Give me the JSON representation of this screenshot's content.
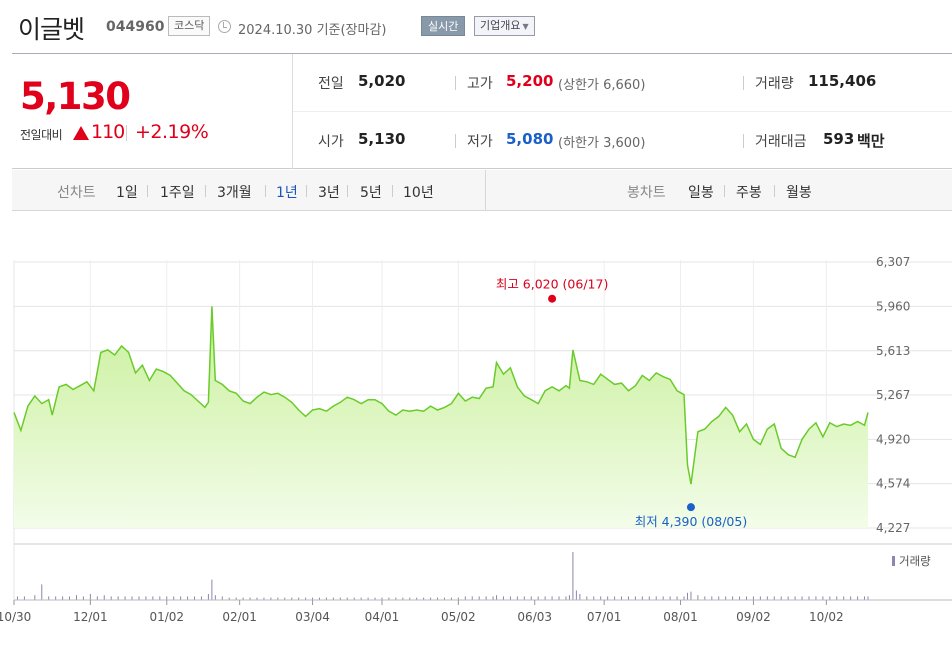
{
  "header": {
    "stock_name": "이글벳",
    "stock_code": "044960",
    "market": "코스닥",
    "date_text": "2024.10.30  기준(장마감)",
    "realtime_label": "실시간",
    "company_label": "기업개요"
  },
  "summary": {
    "price": "5,130",
    "change_label": "전일대비",
    "change_value": "110",
    "change_pct": "+2.19%",
    "prev_close_label": "전일",
    "prev_close": "5,020",
    "high_label": "고가",
    "high": "5,200",
    "upper_limit_label": "(상한가",
    "upper_limit": "6,660",
    "upper_limit_close": ")",
    "volume_label": "거래량",
    "volume": "115,406",
    "open_label": "시가",
    "open": "5,130",
    "low_label": "저가",
    "low": "5,080",
    "lower_limit_label": "(하한가",
    "lower_limit": "3,600",
    "lower_limit_close": ")",
    "amount_label": "거래대금",
    "amount": "593",
    "amount_unit": "백만",
    "up_color": "#e0001b",
    "down_color": "#1a60c8"
  },
  "toolbar": {
    "line_chart_label": "선차트",
    "periods": [
      "1일",
      "1주일",
      "3개월",
      "1년",
      "3년",
      "5년",
      "10년"
    ],
    "active_period": "1년",
    "candle_chart_label": "봉차트",
    "candle_periods": [
      "일봉",
      "주봉",
      "월봉"
    ]
  },
  "chart_data": {
    "type": "area",
    "y_ticks": [
      "6,307",
      "5,960",
      "5,613",
      "5,267",
      "4,920",
      "4,574",
      "4,227"
    ],
    "ylim": [
      4227,
      6307
    ],
    "x_tick_labels": [
      "10/30",
      "12/01",
      "01/02",
      "02/01",
      "03/04",
      "04/01",
      "05/02",
      "06/03",
      "07/01",
      "08/01",
      "09/02",
      "10/02"
    ],
    "x_tick_positions": [
      0,
      22,
      44,
      65,
      86,
      106,
      128,
      150,
      170,
      192,
      213,
      234
    ],
    "n_days": 247,
    "price_series": [
      [
        0,
        5130
      ],
      [
        2,
        4990
      ],
      [
        4,
        5180
      ],
      [
        6,
        5260
      ],
      [
        8,
        5200
      ],
      [
        10,
        5230
      ],
      [
        11,
        5110
      ],
      [
        13,
        5330
      ],
      [
        15,
        5350
      ],
      [
        17,
        5310
      ],
      [
        19,
        5340
      ],
      [
        21,
        5370
      ],
      [
        23,
        5300
      ],
      [
        25,
        5600
      ],
      [
        27,
        5620
      ],
      [
        29,
        5580
      ],
      [
        31,
        5650
      ],
      [
        33,
        5600
      ],
      [
        35,
        5440
      ],
      [
        37,
        5500
      ],
      [
        39,
        5380
      ],
      [
        41,
        5470
      ],
      [
        43,
        5450
      ],
      [
        45,
        5420
      ],
      [
        47,
        5360
      ],
      [
        49,
        5300
      ],
      [
        51,
        5270
      ],
      [
        53,
        5220
      ],
      [
        55,
        5170
      ],
      [
        56,
        5210
      ],
      [
        57,
        5960
      ],
      [
        58,
        5380
      ],
      [
        60,
        5350
      ],
      [
        62,
        5300
      ],
      [
        64,
        5280
      ],
      [
        66,
        5220
      ],
      [
        68,
        5200
      ],
      [
        70,
        5250
      ],
      [
        72,
        5290
      ],
      [
        74,
        5270
      ],
      [
        76,
        5280
      ],
      [
        78,
        5250
      ],
      [
        80,
        5210
      ],
      [
        82,
        5150
      ],
      [
        84,
        5100
      ],
      [
        86,
        5150
      ],
      [
        88,
        5160
      ],
      [
        90,
        5140
      ],
      [
        92,
        5180
      ],
      [
        94,
        5210
      ],
      [
        96,
        5250
      ],
      [
        98,
        5230
      ],
      [
        100,
        5200
      ],
      [
        102,
        5230
      ],
      [
        104,
        5230
      ],
      [
        106,
        5200
      ],
      [
        108,
        5140
      ],
      [
        110,
        5110
      ],
      [
        112,
        5150
      ],
      [
        114,
        5140
      ],
      [
        116,
        5150
      ],
      [
        118,
        5140
      ],
      [
        120,
        5180
      ],
      [
        122,
        5150
      ],
      [
        124,
        5170
      ],
      [
        126,
        5200
      ],
      [
        128,
        5280
      ],
      [
        130,
        5220
      ],
      [
        132,
        5250
      ],
      [
        134,
        5240
      ],
      [
        136,
        5320
      ],
      [
        138,
        5330
      ],
      [
        139,
        5520
      ],
      [
        141,
        5430
      ],
      [
        143,
        5480
      ],
      [
        145,
        5330
      ],
      [
        147,
        5260
      ],
      [
        149,
        5230
      ],
      [
        151,
        5200
      ],
      [
        153,
        5300
      ],
      [
        155,
        5330
      ],
      [
        157,
        5300
      ],
      [
        159,
        5340
      ],
      [
        160,
        5320
      ],
      [
        161,
        5620
      ],
      [
        163,
        5380
      ],
      [
        165,
        5370
      ],
      [
        167,
        5350
      ],
      [
        169,
        5430
      ],
      [
        171,
        5390
      ],
      [
        173,
        5350
      ],
      [
        175,
        5360
      ],
      [
        177,
        5300
      ],
      [
        179,
        5340
      ],
      [
        181,
        5420
      ],
      [
        183,
        5380
      ],
      [
        185,
        5440
      ],
      [
        187,
        5410
      ],
      [
        189,
        5390
      ],
      [
        191,
        5300
      ],
      [
        193,
        5270
      ],
      [
        194,
        4720
      ],
      [
        195,
        4570
      ],
      [
        197,
        4980
      ],
      [
        199,
        5000
      ],
      [
        201,
        5060
      ],
      [
        203,
        5100
      ],
      [
        205,
        5170
      ],
      [
        207,
        5110
      ],
      [
        209,
        4980
      ],
      [
        211,
        5040
      ],
      [
        213,
        4920
      ],
      [
        215,
        4880
      ],
      [
        217,
        5000
      ],
      [
        219,
        5040
      ],
      [
        221,
        4850
      ],
      [
        223,
        4800
      ],
      [
        225,
        4780
      ],
      [
        227,
        4920
      ],
      [
        229,
        5000
      ],
      [
        231,
        5050
      ],
      [
        233,
        4940
      ],
      [
        235,
        5050
      ],
      [
        237,
        5020
      ],
      [
        239,
        5040
      ],
      [
        241,
        5030
      ],
      [
        243,
        5060
      ],
      [
        245,
        5030
      ],
      [
        246,
        5130
      ]
    ],
    "volume_series": [
      [
        1,
        3
      ],
      [
        3,
        3
      ],
      [
        6,
        4
      ],
      [
        8,
        13
      ],
      [
        10,
        3
      ],
      [
        12,
        3
      ],
      [
        14,
        3
      ],
      [
        16,
        3
      ],
      [
        18,
        4
      ],
      [
        20,
        3
      ],
      [
        22,
        5
      ],
      [
        24,
        3
      ],
      [
        26,
        4
      ],
      [
        28,
        3
      ],
      [
        30,
        3
      ],
      [
        32,
        3
      ],
      [
        34,
        3
      ],
      [
        36,
        3
      ],
      [
        38,
        3
      ],
      [
        40,
        3
      ],
      [
        42,
        3
      ],
      [
        44,
        3
      ],
      [
        46,
        3
      ],
      [
        48,
        3
      ],
      [
        50,
        3
      ],
      [
        52,
        3
      ],
      [
        54,
        3
      ],
      [
        56,
        5
      ],
      [
        57,
        17
      ],
      [
        58,
        4
      ],
      [
        60,
        3
      ],
      [
        62,
        2
      ],
      [
        64,
        2
      ],
      [
        66,
        2
      ],
      [
        68,
        2
      ],
      [
        70,
        2
      ],
      [
        72,
        2
      ],
      [
        74,
        2
      ],
      [
        76,
        2
      ],
      [
        78,
        2
      ],
      [
        80,
        2
      ],
      [
        82,
        2
      ],
      [
        84,
        2
      ],
      [
        86,
        2
      ],
      [
        88,
        2
      ],
      [
        90,
        2
      ],
      [
        92,
        2
      ],
      [
        94,
        2
      ],
      [
        96,
        2
      ],
      [
        98,
        2
      ],
      [
        100,
        2
      ],
      [
        102,
        2
      ],
      [
        104,
        2
      ],
      [
        106,
        2
      ],
      [
        108,
        2
      ],
      [
        110,
        2
      ],
      [
        112,
        2
      ],
      [
        114,
        2
      ],
      [
        116,
        2
      ],
      [
        118,
        2
      ],
      [
        120,
        2
      ],
      [
        122,
        2
      ],
      [
        124,
        2
      ],
      [
        126,
        2
      ],
      [
        128,
        2
      ],
      [
        130,
        3
      ],
      [
        132,
        3
      ],
      [
        134,
        3
      ],
      [
        136,
        3
      ],
      [
        138,
        3
      ],
      [
        139,
        4
      ],
      [
        141,
        3
      ],
      [
        143,
        3
      ],
      [
        145,
        3
      ],
      [
        147,
        3
      ],
      [
        149,
        3
      ],
      [
        151,
        3
      ],
      [
        153,
        3
      ],
      [
        155,
        3
      ],
      [
        157,
        3
      ],
      [
        159,
        3
      ],
      [
        160,
        4
      ],
      [
        161,
        40
      ],
      [
        162,
        8
      ],
      [
        163,
        5
      ],
      [
        165,
        3
      ],
      [
        167,
        3
      ],
      [
        169,
        3
      ],
      [
        171,
        3
      ],
      [
        173,
        3
      ],
      [
        175,
        3
      ],
      [
        177,
        3
      ],
      [
        179,
        3
      ],
      [
        181,
        3
      ],
      [
        183,
        3
      ],
      [
        185,
        3
      ],
      [
        187,
        3
      ],
      [
        189,
        3
      ],
      [
        191,
        3
      ],
      [
        193,
        3
      ],
      [
        194,
        6
      ],
      [
        195,
        7
      ],
      [
        197,
        4
      ],
      [
        199,
        3
      ],
      [
        201,
        3
      ],
      [
        203,
        3
      ],
      [
        205,
        3
      ],
      [
        207,
        3
      ],
      [
        209,
        3
      ],
      [
        211,
        3
      ],
      [
        213,
        3
      ],
      [
        215,
        3
      ],
      [
        217,
        3
      ],
      [
        219,
        3
      ],
      [
        221,
        3
      ],
      [
        223,
        3
      ],
      [
        225,
        3
      ],
      [
        227,
        3
      ],
      [
        229,
        3
      ],
      [
        231,
        3
      ],
      [
        233,
        3
      ],
      [
        235,
        3
      ],
      [
        237,
        3
      ],
      [
        239,
        3
      ],
      [
        241,
        3
      ],
      [
        243,
        3
      ],
      [
        245,
        3
      ],
      [
        246,
        3
      ]
    ],
    "high_annotation": "최고 6,020 (06/17)",
    "high_point": [
      155,
      6020
    ],
    "low_annotation": "최저 4,390 (08/05)",
    "low_point": [
      195,
      4390
    ],
    "volume_legend": "거래량",
    "line_color": "#6acb2a",
    "fill_color": "#d9f5b8",
    "volume_color": "#8c86b0"
  }
}
